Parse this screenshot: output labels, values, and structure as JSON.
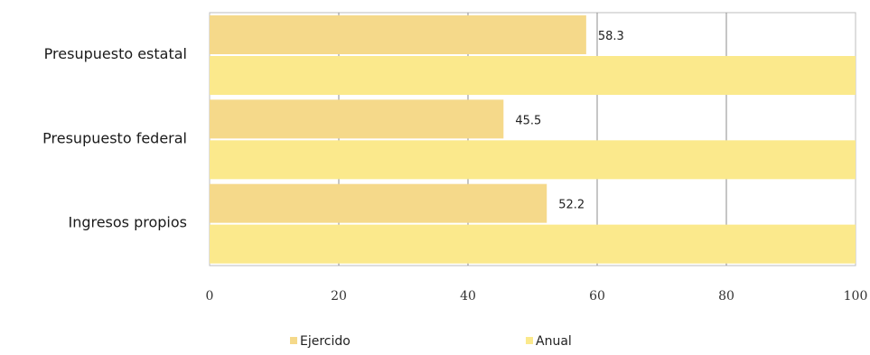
{
  "chart_data": {
    "type": "bar",
    "orientation": "horizontal",
    "categories": [
      "Presupuesto estatal",
      "Presupuesto federal",
      "Ingresos propios"
    ],
    "series": [
      {
        "name": "Ejercido",
        "values": [
          58.3,
          45.5,
          52.2
        ],
        "color": "#f5d98a"
      },
      {
        "name": "Anual",
        "values": [
          100,
          100,
          100
        ],
        "color": "#fbe98c"
      }
    ],
    "data_labels": [
      "58.3",
      "45.5",
      "52.2"
    ],
    "xlim": [
      0,
      100
    ],
    "x_ticks": [
      "0",
      "20",
      "40",
      "60",
      "80",
      "100"
    ],
    "grid": true,
    "legend_position": "bottom",
    "title": "",
    "xlabel": "",
    "ylabel": ""
  }
}
